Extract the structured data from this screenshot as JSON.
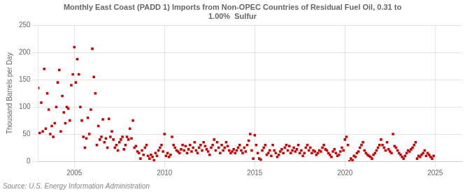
{
  "chart_data": {
    "type": "scatter",
    "title": "Monthly East Coast (PADD 1) Imports from Non-OPEC Countries of Residual Fuel Oil, 0.31 to\n1.00%  Sulfur",
    "ylabel": "Thousand Barrels per Day",
    "source": "Source: U.S. Energy Information Administration",
    "color": "#CC0000",
    "marker": "square",
    "grid": true,
    "xlim": [
      2003.0,
      2026.5
    ],
    "ylim": [
      0,
      250
    ],
    "xticks": [
      2005,
      2010,
      2015,
      2020,
      2025
    ],
    "yticks": [
      0,
      50,
      100,
      150,
      200,
      250
    ],
    "x": [
      2003.0,
      2003.083,
      2003.167,
      2003.25,
      2003.333,
      2003.417,
      2003.5,
      2003.583,
      2003.667,
      2003.75,
      2003.833,
      2003.917,
      2004.0,
      2004.083,
      2004.167,
      2004.25,
      2004.333,
      2004.417,
      2004.5,
      2004.583,
      2004.667,
      2004.75,
      2004.833,
      2004.917,
      2005.0,
      2005.083,
      2005.167,
      2005.25,
      2005.333,
      2005.417,
      2005.5,
      2005.583,
      2005.667,
      2005.75,
      2005.833,
      2005.917,
      2006.0,
      2006.083,
      2006.167,
      2006.25,
      2006.333,
      2006.417,
      2006.5,
      2006.583,
      2006.667,
      2006.75,
      2006.833,
      2006.917,
      2007.0,
      2007.083,
      2007.167,
      2007.25,
      2007.333,
      2007.417,
      2007.5,
      2007.583,
      2007.667,
      2007.75,
      2007.833,
      2007.917,
      2008.0,
      2008.083,
      2008.167,
      2008.25,
      2008.333,
      2008.417,
      2008.5,
      2008.583,
      2008.667,
      2008.75,
      2008.833,
      2008.917,
      2009.0,
      2009.083,
      2009.167,
      2009.25,
      2009.333,
      2009.417,
      2009.5,
      2009.583,
      2009.667,
      2009.75,
      2009.833,
      2009.917,
      2010.0,
      2010.083,
      2010.167,
      2010.25,
      2010.333,
      2010.417,
      2010.5,
      2010.583,
      2010.667,
      2010.75,
      2010.833,
      2010.917,
      2011.0,
      2011.083,
      2011.167,
      2011.25,
      2011.333,
      2011.417,
      2011.5,
      2011.583,
      2011.667,
      2011.75,
      2011.833,
      2011.917,
      2012.0,
      2012.083,
      2012.167,
      2012.25,
      2012.333,
      2012.417,
      2012.5,
      2012.583,
      2012.667,
      2012.75,
      2012.833,
      2012.917,
      2013.0,
      2013.083,
      2013.167,
      2013.25,
      2013.333,
      2013.417,
      2013.5,
      2013.583,
      2013.667,
      2013.75,
      2013.833,
      2013.917,
      2014.0,
      2014.083,
      2014.167,
      2014.25,
      2014.333,
      2014.417,
      2014.5,
      2014.583,
      2014.667,
      2014.75,
      2014.833,
      2014.917,
      2015.0,
      2015.083,
      2015.167,
      2015.25,
      2015.333,
      2015.417,
      2015.5,
      2015.583,
      2015.667,
      2015.75,
      2015.833,
      2015.917,
      2016.0,
      2016.083,
      2016.167,
      2016.25,
      2016.333,
      2016.417,
      2016.5,
      2016.583,
      2016.667,
      2016.75,
      2016.833,
      2016.917,
      2017.0,
      2017.083,
      2017.167,
      2017.25,
      2017.333,
      2017.417,
      2017.5,
      2017.583,
      2017.667,
      2017.75,
      2017.833,
      2017.917,
      2018.0,
      2018.083,
      2018.167,
      2018.25,
      2018.333,
      2018.417,
      2018.5,
      2018.583,
      2018.667,
      2018.75,
      2018.833,
      2018.917,
      2019.0,
      2019.083,
      2019.167,
      2019.25,
      2019.333,
      2019.417,
      2019.5,
      2019.583,
      2019.667,
      2019.75,
      2019.833,
      2019.917,
      2020.0,
      2020.083,
      2020.167,
      2020.25,
      2020.333,
      2020.417,
      2020.5,
      2020.583,
      2020.667,
      2020.75,
      2020.833,
      2020.917,
      2021.0,
      2021.083,
      2021.167,
      2021.25,
      2021.333,
      2021.417,
      2021.5,
      2021.583,
      2021.667,
      2021.75,
      2021.833,
      2021.917,
      2022.0,
      2022.083,
      2022.167,
      2022.25,
      2022.333,
      2022.417,
      2022.5,
      2022.583,
      2022.667,
      2022.75,
      2022.833,
      2022.917,
      2023.0,
      2023.083,
      2023.167,
      2023.25,
      2023.333,
      2023.417,
      2023.5,
      2023.583,
      2023.667,
      2023.75,
      2023.833,
      2023.917,
      2024.0,
      2024.083,
      2024.167,
      2024.25,
      2024.333,
      2024.417,
      2024.5,
      2024.583,
      2024.667,
      2024.75,
      2024.833,
      2024.917
    ],
    "values": [
      135,
      52,
      108,
      55,
      170,
      60,
      125,
      95,
      50,
      65,
      45,
      70,
      100,
      145,
      168,
      55,
      120,
      90,
      70,
      100,
      97,
      75,
      140,
      160,
      210,
      145,
      188,
      160,
      100,
      75,
      45,
      25,
      42,
      80,
      50,
      95,
      207,
      155,
      125,
      30,
      65,
      40,
      45,
      77,
      35,
      42,
      25,
      78,
      45,
      55,
      40,
      25,
      30,
      20,
      35,
      40,
      45,
      22,
      30,
      45,
      40,
      60,
      42,
      75,
      25,
      28,
      18,
      15,
      5,
      20,
      12,
      25,
      30,
      10,
      5,
      12,
      8,
      2,
      15,
      10,
      20,
      25,
      30,
      18,
      50,
      10,
      15,
      8,
      12,
      45,
      30,
      25,
      20,
      18,
      15,
      22,
      30,
      20,
      28,
      15,
      22,
      30,
      18,
      25,
      35,
      20,
      15,
      25,
      30,
      20,
      35,
      28,
      22,
      18,
      12,
      25,
      30,
      40,
      20,
      35,
      25,
      15,
      30,
      20,
      25,
      35,
      28,
      20,
      15,
      18,
      22,
      15,
      20,
      25,
      30,
      20,
      15,
      25,
      18,
      30,
      38,
      50,
      20,
      5,
      48,
      30,
      15,
      5,
      3,
      20,
      25,
      30,
      12,
      15,
      20,
      10,
      30,
      20,
      15,
      8,
      12,
      18,
      22,
      15,
      25,
      30,
      20,
      28,
      15,
      20,
      25,
      18,
      22,
      30,
      15,
      20,
      10,
      15,
      25,
      30,
      20,
      25,
      15,
      20,
      18,
      12,
      15,
      20,
      18,
      25,
      30,
      22,
      20,
      15,
      12,
      8,
      18,
      22,
      15,
      10,
      12,
      18,
      25,
      20,
      40,
      45,
      30,
      0,
      5,
      2,
      10,
      8,
      15,
      18,
      25,
      30,
      35,
      20,
      15,
      12,
      10,
      8,
      5,
      12,
      15,
      20,
      25,
      30,
      40,
      30,
      25,
      20,
      35,
      22,
      18,
      15,
      50,
      28,
      25,
      20,
      15,
      12,
      8,
      5,
      10,
      15,
      20,
      18,
      22,
      25,
      30,
      35,
      5,
      10,
      8,
      12,
      15,
      20,
      10,
      15,
      12,
      8,
      5,
      10
    ]
  }
}
